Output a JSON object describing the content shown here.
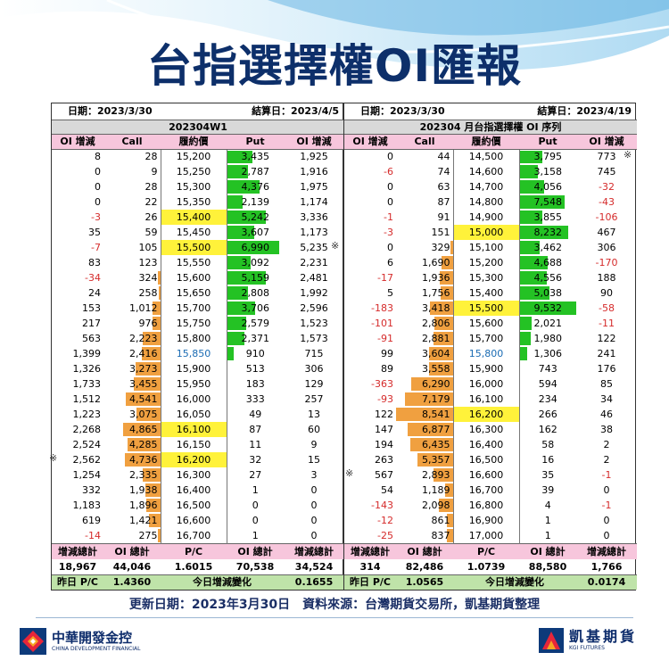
{
  "title": "台指選擇權OI匯報",
  "left": {
    "date_label": "日期：2023/3/30",
    "settle_label": "結算日：2023/4/5",
    "subtitle": "202304W1",
    "headers": [
      "OI 增減",
      "Call",
      "履約價",
      "Put",
      "OI 增減"
    ],
    "rows": [
      {
        "cd": "8",
        "c": "28",
        "k": "15,200",
        "p": "3,435",
        "pd": "1,925",
        "cb": 0,
        "pb": 0.45
      },
      {
        "cd": "0",
        "c": "9",
        "k": "15,250",
        "p": "2,787",
        "pd": "1,916",
        "cb": 0,
        "pb": 0.37
      },
      {
        "cd": "0",
        "c": "28",
        "k": "15,300",
        "p": "4,376",
        "pd": "1,975",
        "cb": 0,
        "pb": 0.58
      },
      {
        "cd": "0",
        "c": "22",
        "k": "15,350",
        "p": "2,139",
        "pd": "1,174",
        "cb": 0,
        "pb": 0.28
      },
      {
        "cd": "-3",
        "c": "26",
        "k": "15,400",
        "p": "5,242",
        "pd": "3,336",
        "cb": 0,
        "pb": 0.69,
        "hl": true
      },
      {
        "cd": "35",
        "c": "59",
        "k": "15,450",
        "p": "3,607",
        "pd": "1,173",
        "cb": 0,
        "pb": 0.48
      },
      {
        "cd": "-7",
        "c": "105",
        "k": "15,500",
        "p": "6,990",
        "pd": "5,235",
        "cb": 0,
        "pb": 0.92,
        "hl": true,
        "mark": true
      },
      {
        "cd": "83",
        "c": "123",
        "k": "15,550",
        "p": "3,092",
        "pd": "2,231",
        "cb": 0,
        "pb": 0.41
      },
      {
        "cd": "-34",
        "c": "324",
        "k": "15,600",
        "p": "5,159",
        "pd": "2,481",
        "cb": 0.04,
        "pb": 0.68
      },
      {
        "cd": "24",
        "c": "258",
        "k": "15,650",
        "p": "2,808",
        "pd": "1,992",
        "cb": 0.03,
        "pb": 0.37
      },
      {
        "cd": "153",
        "c": "1,012",
        "k": "15,700",
        "p": "3,706",
        "pd": "2,596",
        "cb": 0.13,
        "pb": 0.49
      },
      {
        "cd": "217",
        "c": "976",
        "k": "15,750",
        "p": "2,579",
        "pd": "1,523",
        "cb": 0.13,
        "pb": 0.34
      },
      {
        "cd": "563",
        "c": "2,223",
        "k": "15,800",
        "p": "2,371",
        "pd": "1,573",
        "cb": 0.3,
        "pb": 0.31
      },
      {
        "cd": "1,399",
        "c": "2,416",
        "k": "15,850",
        "p": "910",
        "pd": "715",
        "cb": 0.32,
        "pb": 0.12,
        "blue": true
      },
      {
        "cd": "1,326",
        "c": "3,273",
        "k": "15,900",
        "p": "513",
        "pd": "306",
        "cb": 0.44,
        "pb": 0
      },
      {
        "cd": "1,733",
        "c": "3,455",
        "k": "15,950",
        "p": "183",
        "pd": "129",
        "cb": 0.46,
        "pb": 0
      },
      {
        "cd": "1,512",
        "c": "4,541",
        "k": "16,000",
        "p": "333",
        "pd": "257",
        "cb": 0.6,
        "pb": 0
      },
      {
        "cd": "1,223",
        "c": "3,075",
        "k": "16,050",
        "p": "49",
        "pd": "13",
        "cb": 0.41,
        "pb": 0
      },
      {
        "cd": "2,268",
        "c": "4,865",
        "k": "16,100",
        "p": "87",
        "pd": "60",
        "cb": 0.65,
        "pb": 0,
        "hl": true
      },
      {
        "cd": "2,524",
        "c": "4,285",
        "k": "16,150",
        "p": "11",
        "pd": "9",
        "cb": 0.57,
        "pb": 0
      },
      {
        "cd": "2,562",
        "c": "4,736",
        "k": "16,200",
        "p": "32",
        "pd": "15",
        "cb": 0.63,
        "pb": 0,
        "hl": true,
        "mark": true
      },
      {
        "cd": "1,254",
        "c": "2,335",
        "k": "16,300",
        "p": "27",
        "pd": "3",
        "cb": 0.31,
        "pb": 0
      },
      {
        "cd": "332",
        "c": "1,938",
        "k": "16,400",
        "p": "1",
        "pd": "0",
        "cb": 0.26,
        "pb": 0
      },
      {
        "cd": "1,183",
        "c": "1,896",
        "k": "16,500",
        "p": "0",
        "pd": "0",
        "cb": 0.25,
        "pb": 0
      },
      {
        "cd": "619",
        "c": "1,421",
        "k": "16,600",
        "p": "0",
        "pd": "0",
        "cb": 0.19,
        "pb": 0
      },
      {
        "cd": "-14",
        "c": "275",
        "k": "16,700",
        "p": "1",
        "pd": "0",
        "cb": 0.04,
        "pb": 0
      }
    ],
    "sum_headers": [
      "增減總計",
      "OI 總計",
      "P/C",
      "OI 總計",
      "增減總計"
    ],
    "sum_values": [
      "18,967",
      "44,046",
      "1.6015",
      "70,538",
      "34,524"
    ],
    "yesterday_label": "昨日 P/C",
    "yesterday_value": "1.4360",
    "today_change_label": "今日增減變化",
    "today_change_value": "0.1655"
  },
  "right": {
    "date_label": "日期：2023/3/30",
    "settle_label": "結算日：2023/4/19",
    "subtitle": "202304 月台指選擇權 OI 序列",
    "headers": [
      "OI 增減",
      "Call",
      "履約價",
      "Put",
      "OI 增減"
    ],
    "rows": [
      {
        "cd": "0",
        "c": "44",
        "k": "14,500",
        "p": "3,795",
        "pd": "773",
        "cb": 0,
        "pb": 0.4,
        "mark": true
      },
      {
        "cd": "-6",
        "c": "74",
        "k": "14,600",
        "p": "3,158",
        "pd": "745",
        "cb": 0,
        "pb": 0.33
      },
      {
        "cd": "0",
        "c": "63",
        "k": "14,700",
        "p": "4,056",
        "pd": "-32",
        "cb": 0,
        "pb": 0.43
      },
      {
        "cd": "0",
        "c": "87",
        "k": "14,800",
        "p": "7,548",
        "pd": "-43",
        "cb": 0,
        "pb": 0.79
      },
      {
        "cd": "-1",
        "c": "91",
        "k": "14,900",
        "p": "3,855",
        "pd": "-106",
        "cb": 0,
        "pb": 0.4
      },
      {
        "cd": "-3",
        "c": "151",
        "k": "15,000",
        "p": "8,232",
        "pd": "467",
        "cb": 0,
        "pb": 0.86,
        "hl": true
      },
      {
        "cd": "0",
        "c": "329",
        "k": "15,100",
        "p": "3,462",
        "pd": "306",
        "cb": 0.04,
        "pb": 0.36
      },
      {
        "cd": "6",
        "c": "1,690",
        "k": "15,200",
        "p": "4,688",
        "pd": "-170",
        "cb": 0.2,
        "pb": 0.49
      },
      {
        "cd": "-17",
        "c": "1,936",
        "k": "15,300",
        "p": "4,556",
        "pd": "188",
        "cb": 0.23,
        "pb": 0.48
      },
      {
        "cd": "5",
        "c": "1,756",
        "k": "15,400",
        "p": "5,038",
        "pd": "90",
        "cb": 0.21,
        "pb": 0.53
      },
      {
        "cd": "-183",
        "c": "3,418",
        "k": "15,500",
        "p": "9,532",
        "pd": "-58",
        "cb": 0.4,
        "pb": 1.0,
        "hl": true
      },
      {
        "cd": "-101",
        "c": "2,806",
        "k": "15,600",
        "p": "2,021",
        "pd": "-11",
        "cb": 0.33,
        "pb": 0.21
      },
      {
        "cd": "-91",
        "c": "2,881",
        "k": "15,700",
        "p": "1,980",
        "pd": "122",
        "cb": 0.34,
        "pb": 0.2
      },
      {
        "cd": "99",
        "c": "3,604",
        "k": "15,800",
        "p": "1,306",
        "pd": "241",
        "cb": 0.42,
        "pb": 0.14,
        "blue": true
      },
      {
        "cd": "89",
        "c": "3,558",
        "k": "15,900",
        "p": "743",
        "pd": "176",
        "cb": 0.42,
        "pb": 0
      },
      {
        "cd": "-363",
        "c": "6,290",
        "k": "16,000",
        "p": "594",
        "pd": "85",
        "cb": 0.74,
        "pb": 0
      },
      {
        "cd": "-93",
        "c": "7,179",
        "k": "16,100",
        "p": "234",
        "pd": "34",
        "cb": 0.84,
        "pb": 0
      },
      {
        "cd": "122",
        "c": "8,541",
        "k": "16,200",
        "p": "266",
        "pd": "46",
        "cb": 1.0,
        "pb": 0,
        "hl": true
      },
      {
        "cd": "147",
        "c": "6,877",
        "k": "16,300",
        "p": "162",
        "pd": "38",
        "cb": 0.8,
        "pb": 0
      },
      {
        "cd": "194",
        "c": "6,435",
        "k": "16,400",
        "p": "58",
        "pd": "2",
        "cb": 0.75,
        "pb": 0
      },
      {
        "cd": "263",
        "c": "5,357",
        "k": "16,500",
        "p": "16",
        "pd": "2",
        "cb": 0.63,
        "pb": 0
      },
      {
        "cd": "567",
        "c": "2,893",
        "k": "16,600",
        "p": "35",
        "pd": "-1",
        "cb": 0.34,
        "pb": 0,
        "mark": true
      },
      {
        "cd": "54",
        "c": "1,189",
        "k": "16,700",
        "p": "39",
        "pd": "0",
        "cb": 0.14,
        "pb": 0
      },
      {
        "cd": "-143",
        "c": "2,098",
        "k": "16,800",
        "p": "4",
        "pd": "-1",
        "cb": 0.25,
        "pb": 0
      },
      {
        "cd": "-12",
        "c": "861",
        "k": "16,900",
        "p": "1",
        "pd": "0",
        "cb": 0.1,
        "pb": 0
      },
      {
        "cd": "-25",
        "c": "837",
        "k": "17,000",
        "p": "1",
        "pd": "0",
        "cb": 0.1,
        "pb": 0
      }
    ],
    "sum_headers": [
      "增減總計",
      "OI 總計",
      "P/C",
      "OI 總計",
      "增減總計"
    ],
    "sum_values": [
      "314",
      "82,486",
      "1.0739",
      "88,580",
      "1,766"
    ],
    "yesterday_label": "昨日 P/C",
    "yesterday_value": "1.0565",
    "today_change_label": "今日增減變化",
    "today_change_value": "0.0174"
  },
  "mark_symbol": "※",
  "footer": "更新日期：2023年3月30日　資料來源：台灣期貨交易所，凱基期貨整理",
  "logo_left": {
    "name": "中華開發金控",
    "en": "CHINA DEVELOPMENT FINANCIAL",
    "icon": "cdf-logo-icon"
  },
  "logo_right": {
    "name": "凱基期貨",
    "en": "KGI FUTURES",
    "icon": "kgi-logo-icon"
  },
  "colors": {
    "title": "#0d2f6a",
    "header_pink": "#f7c6dc",
    "put_bar": "#24c224",
    "call_bar": "#f0a040",
    "highlight": "#fff23a",
    "negative": "#d52b2b",
    "summary_green": "#bfe3a9",
    "wave": "#7fc4ec"
  }
}
